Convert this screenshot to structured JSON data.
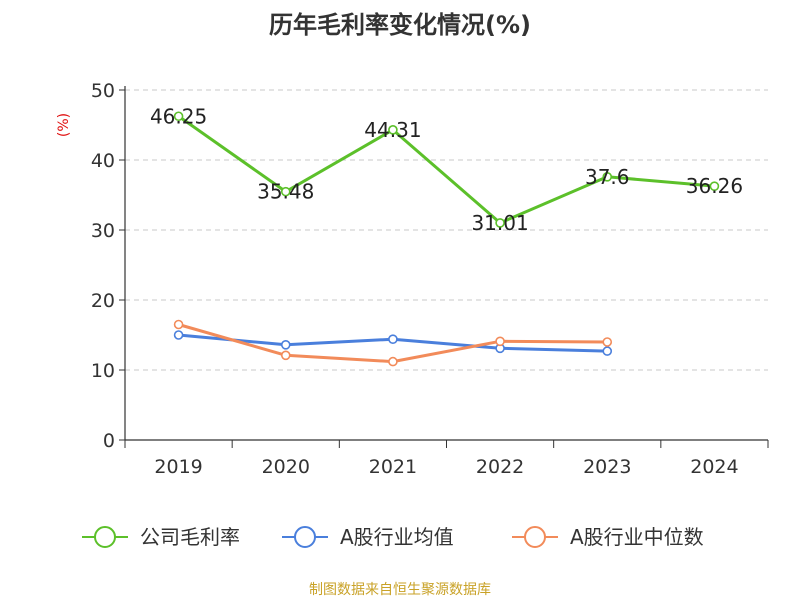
{
  "chart_data": {
    "type": "line",
    "title": "历年毛利率变化情况(%)",
    "ylabel": "(%)",
    "ylim": [
      0,
      50
    ],
    "yticks": [
      0,
      10,
      20,
      30,
      40,
      50
    ],
    "grid": true,
    "legend_position": "bottom",
    "categories": [
      "2019",
      "2020",
      "2021",
      "2022",
      "2023",
      "2024"
    ],
    "series": [
      {
        "name": "公司毛利率",
        "color": "#5cc02a",
        "show_labels": true,
        "labels": [
          "46.25",
          "35.48",
          "44.31",
          "31.01",
          "37.6",
          "36.26"
        ],
        "values": [
          46.25,
          35.48,
          44.31,
          31.01,
          37.6,
          36.26
        ]
      },
      {
        "name": "A股行业均值",
        "color": "#4a7fdc",
        "show_labels": false,
        "values": [
          15.0,
          13.6,
          14.4,
          13.1,
          12.7,
          null
        ]
      },
      {
        "name": "A股行业中位数",
        "color": "#f28b5a",
        "show_labels": false,
        "values": [
          16.5,
          12.1,
          11.2,
          14.1,
          14.0,
          null
        ]
      }
    ],
    "source": "制图数据来自恒生聚源数据库"
  }
}
